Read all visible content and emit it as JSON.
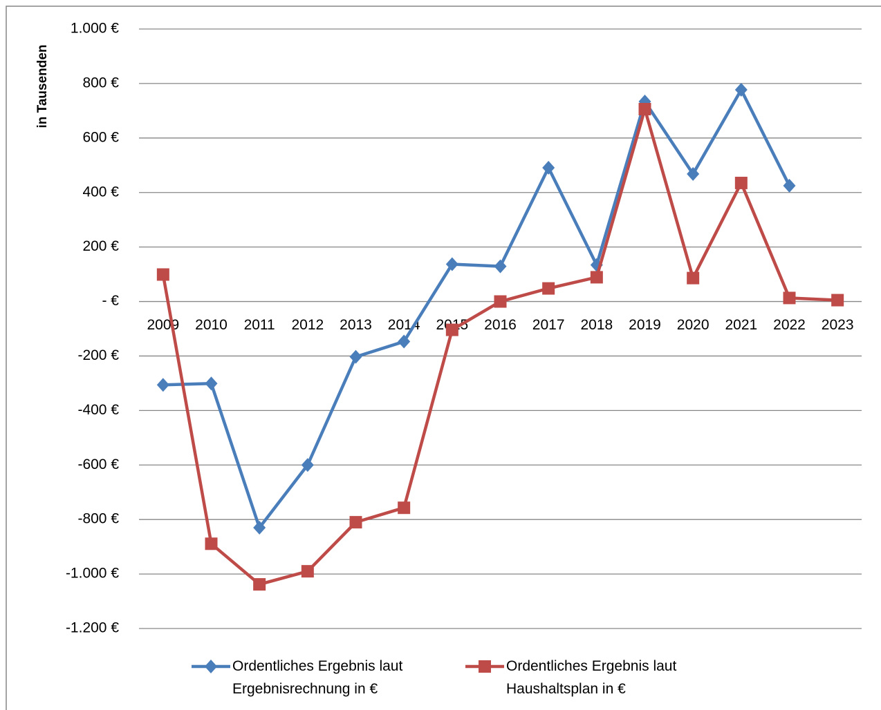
{
  "chart_data": {
    "type": "line",
    "y_label": "in Tausenden",
    "categories": [
      "2009",
      "2010",
      "2011",
      "2012",
      "2013",
      "2014",
      "2015",
      "2016",
      "2017",
      "2018",
      "2019",
      "2020",
      "2021",
      "2022",
      "2023"
    ],
    "series": [
      {
        "name": "Ordentliches Ergebnis laut Ergebnisrechnung in €",
        "color": "#4a7ebb",
        "marker": "diamond",
        "values": [
          -306,
          -301,
          -830,
          -600,
          -203,
          -147,
          137,
          129,
          491,
          134,
          734,
          468,
          777,
          425,
          null
        ]
      },
      {
        "name": "Ordentliches Ergebnis laut Haushaltsplan in €",
        "color": "#be4b48",
        "marker": "square",
        "values": [
          99,
          -889,
          -1038,
          -990,
          -810,
          -757,
          -104,
          0,
          48,
          89,
          706,
          86,
          435,
          13,
          5
        ]
      }
    ],
    "ylim": [
      -1200,
      1000
    ],
    "yticks": [
      {
        "value": 1000,
        "label": "1.000 €"
      },
      {
        "value": 800,
        "label": "800 €"
      },
      {
        "value": 600,
        "label": "600 €"
      },
      {
        "value": 400,
        "label": "400 €"
      },
      {
        "value": 200,
        "label": "200 €"
      },
      {
        "value": 0,
        "label": "-  €"
      },
      {
        "value": -200,
        "label": "-200 €"
      },
      {
        "value": -400,
        "label": "-400 €"
      },
      {
        "value": -600,
        "label": "-600 €"
      },
      {
        "value": -800,
        "label": "-800 €"
      },
      {
        "value": -1000,
        "label": "-1.000 €"
      },
      {
        "value": -1200,
        "label": "-1.200 €"
      }
    ],
    "grid": true,
    "legend": "bottom"
  }
}
